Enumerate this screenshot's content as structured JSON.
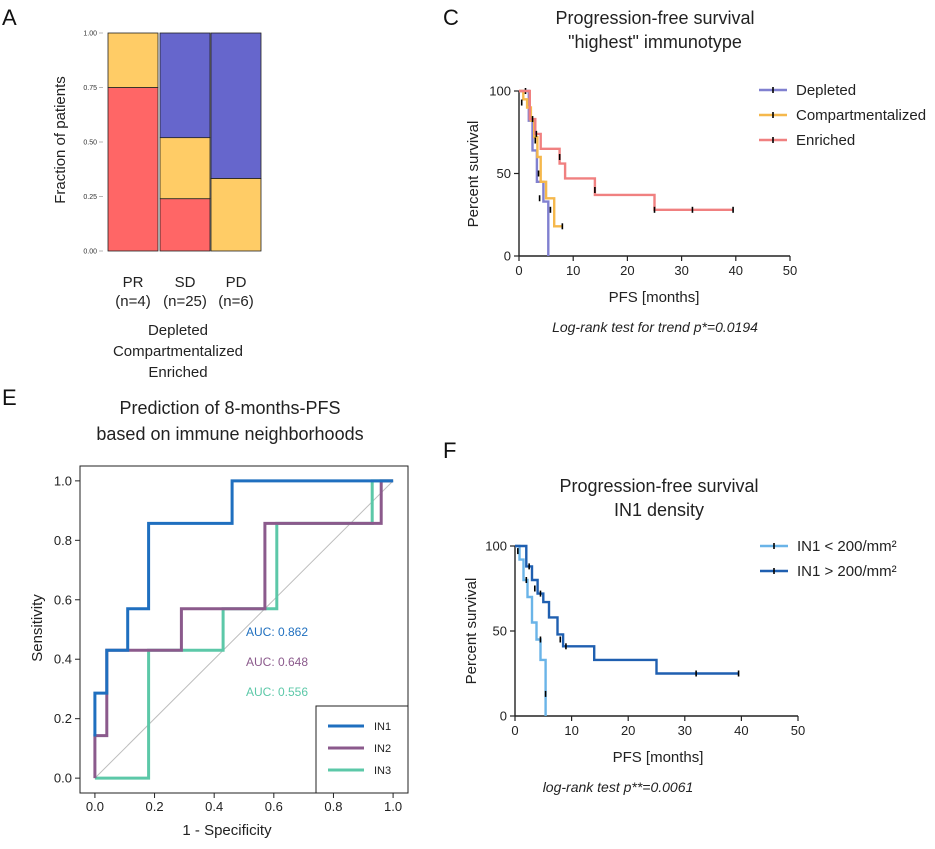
{
  "figure": {
    "panel_a": "A",
    "panel_c": "C",
    "panel_e": "E",
    "panel_f": "F"
  },
  "colors": {
    "depleted": "#6666cc",
    "compartmentalized": "#ffcc66",
    "enriched": "#ff6666",
    "enriched_line": "#f08080",
    "depleted_line": "#8080d0",
    "compart_line": "#f5b84c",
    "in1": "#1f6fbf",
    "in2": "#8b5a8c",
    "in3": "#5cc8a8",
    "low_density": "#6ab4e8",
    "high_density": "#1f5fb0"
  },
  "chart_data": [
    {
      "id": "A",
      "type": "bar",
      "stacked": true,
      "ylabel": "Fraction of patients",
      "ylim": [
        0,
        1
      ],
      "yticks": [
        "0.00",
        "0.25",
        "0.50",
        "0.75",
        "1.00"
      ],
      "categories": [
        "PR",
        "SD",
        "PD"
      ],
      "category_n": [
        "(n=4)",
        "(n=25)",
        "(n=6)"
      ],
      "series": [
        {
          "name": "Enriched",
          "values": [
            0.75,
            0.24,
            0.0
          ]
        },
        {
          "name": "Compartmentalized",
          "values": [
            0.25,
            0.28,
            0.333
          ]
        },
        {
          "name": "Depleted",
          "values": [
            0.0,
            0.48,
            0.667
          ]
        }
      ],
      "legend_entries": [
        "Depleted",
        "Compartmentalized",
        "Enriched"
      ]
    },
    {
      "id": "C",
      "type": "line",
      "step": true,
      "title": [
        "Progression-free survival",
        "\"highest\" immunotype"
      ],
      "xlabel": "PFS [months]",
      "ylabel": "Percent survival",
      "xlim": [
        0,
        50
      ],
      "ylim": [
        0,
        100
      ],
      "xticks": [
        "0",
        "10",
        "20",
        "30",
        "40",
        "50"
      ],
      "yticks": [
        "0",
        "50",
        "100"
      ],
      "series": [
        {
          "name": "Depleted",
          "x": [
            0,
            1.8,
            1.8,
            2.5,
            2.5,
            3.3,
            3.3,
            4.5,
            4.5,
            5.4,
            5.4
          ],
          "y": [
            100,
            100,
            82,
            82,
            64,
            64,
            45,
            45,
            33,
            33,
            0
          ],
          "censors": [
            [
              1.2,
              100
            ]
          ]
        },
        {
          "name": "Compartmentalized",
          "x": [
            0,
            0.8,
            0.8,
            1.5,
            1.5,
            2.2,
            2.2,
            2.8,
            2.8,
            3.4,
            3.4,
            4.0,
            4.0,
            5.0,
            5.0,
            6.5,
            6.5,
            8.0
          ],
          "y": [
            100,
            100,
            95,
            95,
            90,
            90,
            82,
            82,
            72,
            72,
            60,
            60,
            45,
            45,
            35,
            35,
            18,
            18
          ],
          "censors": [
            [
              0.5,
              93
            ],
            [
              2.0,
              87
            ],
            [
              3.0,
              70
            ],
            [
              3.6,
              50
            ],
            [
              3.8,
              35
            ],
            [
              5.8,
              28
            ],
            [
              8.0,
              18
            ]
          ]
        },
        {
          "name": "Enriched",
          "x": [
            0,
            2,
            2,
            3,
            3,
            4,
            4,
            7.5,
            7.5,
            8.5,
            8.5,
            14,
            14,
            25,
            25,
            39.5
          ],
          "y": [
            100,
            100,
            83,
            83,
            74,
            74,
            65,
            65,
            56,
            56,
            47,
            47,
            37,
            37,
            28,
            28
          ],
          "censors": [
            [
              2.5,
              83
            ],
            [
              3.2,
              74
            ],
            [
              7.5,
              60
            ],
            [
              14,
              40
            ],
            [
              25,
              28
            ],
            [
              32,
              28
            ],
            [
              39.5,
              28
            ]
          ]
        }
      ],
      "note": "Log-rank test for trend p*=0.0194"
    },
    {
      "id": "E",
      "type": "line",
      "step": true,
      "title": [
        "Prediction of 8-months-PFS",
        "based on immune neighborhoods"
      ],
      "xlabel": "1 - Specificity",
      "ylabel": "Sensitivity",
      "xlim": [
        0,
        1
      ],
      "ylim": [
        0,
        1
      ],
      "xticks": [
        "0.0",
        "0.2",
        "0.4",
        "0.6",
        "0.8",
        "1.0"
      ],
      "yticks": [
        "0.0",
        "0.2",
        "0.4",
        "0.6",
        "0.8",
        "1.0"
      ],
      "series": [
        {
          "name": "IN1",
          "auc": "AUC: 0.862",
          "x": [
            0,
            0,
            0.04,
            0.04,
            0.11,
            0.11,
            0.18,
            0.18,
            0.46,
            0.46,
            1.0
          ],
          "y": [
            0.14,
            0.286,
            0.286,
            0.43,
            0.43,
            0.57,
            0.57,
            0.857,
            0.857,
            1.0,
            1.0
          ]
        },
        {
          "name": "IN2",
          "auc": "AUC: 0.648",
          "x": [
            0,
            0,
            0.04,
            0.04,
            0.29,
            0.29,
            0.57,
            0.57,
            0.96,
            0.96,
            1.0
          ],
          "y": [
            0,
            0.143,
            0.143,
            0.43,
            0.43,
            0.57,
            0.57,
            0.857,
            0.857,
            1.0,
            1.0
          ]
        },
        {
          "name": "IN3",
          "auc": "AUC: 0.556",
          "x": [
            0,
            0.18,
            0.18,
            0.43,
            0.43,
            0.61,
            0.61,
            0.93,
            0.93,
            1.0
          ],
          "y": [
            0,
            0,
            0.43,
            0.43,
            0.57,
            0.57,
            0.857,
            0.857,
            1.0,
            1.0
          ]
        }
      ],
      "reference_line": {
        "x": [
          0,
          1
        ],
        "y": [
          0,
          1
        ]
      }
    },
    {
      "id": "F",
      "type": "line",
      "step": true,
      "title": [
        "Progression-free survival",
        "IN1 density"
      ],
      "xlabel": "PFS [months]",
      "ylabel": "Percent survival",
      "xlim": [
        0,
        50
      ],
      "ylim": [
        0,
        100
      ],
      "xticks": [
        "0",
        "10",
        "20",
        "30",
        "40",
        "50"
      ],
      "yticks": [
        "0",
        "50",
        "100"
      ],
      "series": [
        {
          "name": "IN1 < 200/mm²",
          "x": [
            0,
            0.8,
            0.8,
            1.5,
            1.5,
            2.2,
            2.2,
            3.0,
            3.0,
            3.8,
            3.8,
            4.5,
            4.5,
            5.4,
            5.4
          ],
          "y": [
            100,
            100,
            92,
            92,
            80,
            80,
            70,
            70,
            55,
            55,
            45,
            45,
            33,
            33,
            0
          ],
          "censors": [
            [
              0.5,
              97
            ],
            [
              2.0,
              80
            ],
            [
              4.5,
              45
            ],
            [
              5.4,
              13
            ]
          ]
        },
        {
          "name": "IN1 > 200/mm²",
          "x": [
            0,
            2,
            2,
            3,
            3,
            4,
            4,
            5,
            5,
            6,
            6,
            7.5,
            7.5,
            8.5,
            8.5,
            14,
            14,
            25,
            25,
            39.5
          ],
          "y": [
            100,
            100,
            88,
            88,
            80,
            80,
            72,
            72,
            67,
            67,
            58,
            58,
            48,
            48,
            41,
            41,
            33,
            33,
            25,
            25
          ],
          "censors": [
            [
              2.5,
              88
            ],
            [
              3.5,
              75
            ],
            [
              4.5,
              72
            ],
            [
              8,
              45
            ],
            [
              9,
              41
            ],
            [
              32,
              25
            ],
            [
              39.5,
              25
            ]
          ]
        }
      ],
      "note": "log-rank test p**=0.0061"
    }
  ]
}
